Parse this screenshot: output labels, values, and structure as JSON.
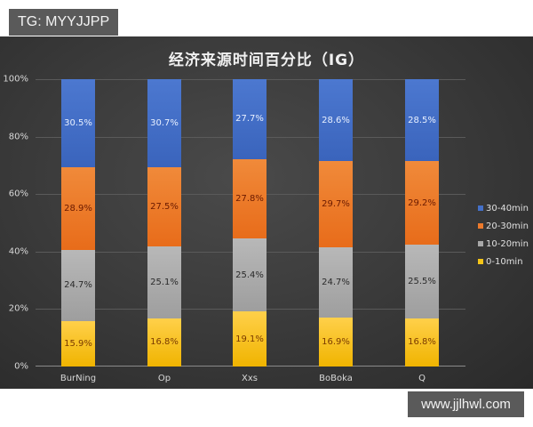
{
  "badge": {
    "text": "TG: MYYJJPP"
  },
  "watermark": {
    "text": "www.jjlhwl.com"
  },
  "colors": {
    "0-10min": "#f5c518",
    "10-20min": "#a8a8a8",
    "20-30min": "#ec7a2c",
    "30-40min": "#4470c8",
    "background": "#3a3a3a"
  },
  "chart_data": {
    "type": "bar",
    "stacked": true,
    "percent": true,
    "title": "经济来源时间百分比（IG）",
    "xlabel": "",
    "ylabel": "",
    "ylim": [
      0,
      100
    ],
    "yticks": [
      "0%",
      "20%",
      "40%",
      "60%",
      "80%",
      "100%"
    ],
    "grid": true,
    "legend_position": "right",
    "categories": [
      "BurNing",
      "Op",
      "Xxs",
      "BoBoka",
      "Q"
    ],
    "series": [
      {
        "name": "0-10min",
        "values": [
          15.9,
          16.8,
          19.1,
          16.9,
          16.8
        ],
        "labels": [
          "15.9%",
          "16.8%",
          "19.1%",
          "16.9%",
          "16.8%"
        ]
      },
      {
        "name": "10-20min",
        "values": [
          24.7,
          25.1,
          25.4,
          24.7,
          25.5
        ],
        "labels": [
          "24.7%",
          "25.1%",
          "25.4%",
          "24.7%",
          "25.5%"
        ]
      },
      {
        "name": "20-30min",
        "values": [
          28.9,
          27.5,
          27.8,
          29.7,
          29.2
        ],
        "labels": [
          "28.9%",
          "27.5%",
          "27.8%",
          "29.7%",
          "29.2%"
        ]
      },
      {
        "name": "30-40min",
        "values": [
          30.5,
          30.7,
          27.7,
          28.6,
          28.5
        ],
        "labels": [
          "30.5%",
          "30.7%",
          "27.7%",
          "28.6%",
          "28.5%"
        ]
      }
    ],
    "legend": [
      "30-40min",
      "20-30min",
      "10-20min",
      "0-10min"
    ]
  }
}
